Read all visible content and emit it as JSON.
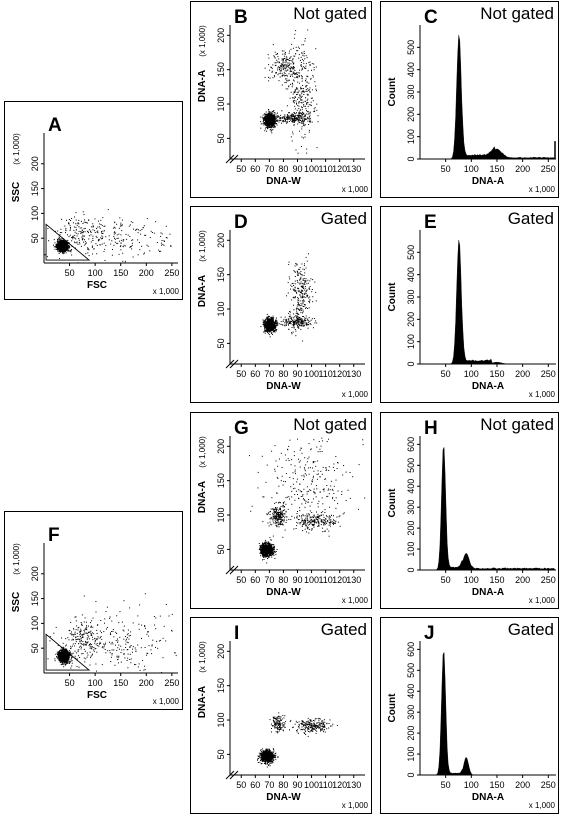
{
  "figure": {
    "labels": {
      "fsc": "FSC",
      "ssc": "SSC",
      "dna_a": "DNA-A",
      "dna_w": "DNA-W",
      "count": "Count",
      "multiplier_x": "x 1,000",
      "multiplier_y": "(x 1,000)"
    }
  },
  "chart_data": [
    {
      "panel": "A",
      "type": "scatter",
      "xlabel": "FSC",
      "ylabel": "SSC",
      "x_ticks": [
        50,
        100,
        150,
        200,
        250
      ],
      "y_ticks": [
        50,
        100,
        150,
        200
      ],
      "xlim": [
        0,
        262
      ],
      "ylim": [
        0,
        262
      ],
      "gate": "triangle",
      "populations": [
        {
          "cx": 35,
          "cy": 35,
          "sx": 5,
          "sy": 5,
          "n": 1400
        },
        {
          "cx": 75,
          "cy": 60,
          "sx": 25,
          "sy": 18,
          "n": 150
        },
        {
          "cx": 150,
          "cy": 50,
          "sx": 60,
          "sy": 25,
          "n": 200
        }
      ]
    },
    {
      "panel": "B",
      "type": "scatter",
      "status": "Not gated",
      "xlabel": "DNA-W",
      "ylabel": "DNA-A",
      "x_ticks": [
        50,
        60,
        70,
        80,
        90,
        100,
        110,
        120,
        130
      ],
      "y_ticks": [
        50,
        100,
        150,
        200
      ],
      "xlim": [
        42,
        138
      ],
      "ylim": [
        20,
        215
      ],
      "populations": [
        {
          "cx": 70,
          "cy": 77,
          "sx": 2,
          "sy": 5,
          "n": 900
        },
        {
          "cx": 88,
          "cy": 80,
          "sx": 7,
          "sy": 4,
          "n": 220
        },
        {
          "cx": 80,
          "cy": 155,
          "sx": 5,
          "sy": 12,
          "n": 180
        },
        {
          "cx": 92,
          "cy": 120,
          "sx": 5,
          "sy": 35,
          "n": 300
        }
      ]
    },
    {
      "panel": "C",
      "type": "histogram",
      "status": "Not gated",
      "xlabel": "DNA-A",
      "ylabel": "Count",
      "x_ticks": [
        50,
        100,
        150,
        200,
        250
      ],
      "y_ticks": [
        0,
        100,
        200,
        300,
        400,
        500
      ],
      "xlim": [
        0,
        265
      ],
      "ylim": [
        0,
        600
      ],
      "peaks": [
        {
          "mu": 76,
          "sigma": 4.5,
          "height": 560
        },
        {
          "mu": 150,
          "sigma": 9,
          "height": 45
        }
      ],
      "plateau": {
        "from": 82,
        "to": 145,
        "height": 20
      },
      "tail": {
        "from": 160,
        "to": 262,
        "height": 8
      },
      "endspike": 80
    },
    {
      "panel": "D",
      "type": "scatter",
      "status": "Gated",
      "xlabel": "DNA-W",
      "ylabel": "DNA-A",
      "x_ticks": [
        50,
        60,
        70,
        80,
        90,
        100,
        110,
        120,
        130
      ],
      "y_ticks": [
        50,
        100,
        150,
        200
      ],
      "xlim": [
        42,
        138
      ],
      "ylim": [
        20,
        215
      ],
      "populations": [
        {
          "cx": 70,
          "cy": 77,
          "sx": 2,
          "sy": 5,
          "n": 850
        },
        {
          "cx": 88,
          "cy": 82,
          "sx": 6,
          "sy": 4,
          "n": 200
        },
        {
          "cx": 92,
          "cy": 120,
          "sx": 4,
          "sy": 25,
          "n": 260
        }
      ]
    },
    {
      "panel": "E",
      "type": "histogram",
      "status": "Gated",
      "xlabel": "DNA-A",
      "ylabel": "Count",
      "x_ticks": [
        50,
        100,
        150,
        200,
        250
      ],
      "y_ticks": [
        0,
        100,
        200,
        300,
        400,
        500
      ],
      "xlim": [
        0,
        265
      ],
      "ylim": [
        0,
        600
      ],
      "peaks": [
        {
          "mu": 76,
          "sigma": 4.5,
          "height": 560
        },
        {
          "mu": 150,
          "sigma": 9,
          "height": 8
        }
      ],
      "plateau": {
        "from": 82,
        "to": 140,
        "height": 18
      },
      "tail": {
        "from": 160,
        "to": 262,
        "height": 0
      },
      "endspike": 0
    },
    {
      "panel": "F",
      "type": "scatter",
      "xlabel": "FSC",
      "ylabel": "SSC",
      "x_ticks": [
        50,
        100,
        150,
        200,
        250
      ],
      "y_ticks": [
        50,
        100,
        150,
        200
      ],
      "xlim": [
        0,
        262
      ],
      "ylim": [
        0,
        262
      ],
      "gate": "triangle",
      "populations": [
        {
          "cx": 38,
          "cy": 35,
          "sx": 5,
          "sy": 6,
          "n": 1300
        },
        {
          "cx": 80,
          "cy": 70,
          "sx": 22,
          "sy": 20,
          "n": 200
        },
        {
          "cx": 155,
          "cy": 60,
          "sx": 55,
          "sy": 35,
          "n": 220
        }
      ]
    },
    {
      "panel": "G",
      "type": "scatter",
      "status": "Not gated",
      "xlabel": "DNA-W",
      "ylabel": "DNA-A",
      "x_ticks": [
        50,
        60,
        70,
        80,
        90,
        100,
        110,
        120,
        130
      ],
      "y_ticks": [
        50,
        100,
        150,
        200
      ],
      "xlim": [
        42,
        138
      ],
      "ylim": [
        20,
        215
      ],
      "populations": [
        {
          "cx": 68,
          "cy": 50,
          "sx": 2.2,
          "sy": 4.5,
          "n": 900
        },
        {
          "cx": 76,
          "cy": 100,
          "sx": 3,
          "sy": 8,
          "n": 220
        },
        {
          "cx": 102,
          "cy": 92,
          "sx": 7,
          "sy": 6,
          "n": 220
        },
        {
          "cx": 98,
          "cy": 150,
          "sx": 16,
          "sy": 35,
          "n": 280
        }
      ]
    },
    {
      "panel": "H",
      "type": "histogram",
      "status": "Not gated",
      "xlabel": "DNA-A",
      "ylabel": "Count",
      "x_ticks": [
        50,
        100,
        150,
        200,
        250
      ],
      "y_ticks": [
        0,
        100,
        200,
        300,
        400,
        500,
        600
      ],
      "xlim": [
        0,
        265
      ],
      "ylim": [
        0,
        640
      ],
      "peaks": [
        {
          "mu": 46,
          "sigma": 4,
          "height": 600
        },
        {
          "mu": 90,
          "sigma": 6,
          "height": 80
        }
      ],
      "plateau": {
        "from": 55,
        "to": 82,
        "height": 15
      },
      "tail": {
        "from": 100,
        "to": 262,
        "height": 10
      },
      "endspike": 0
    },
    {
      "panel": "I",
      "type": "scatter",
      "status": "Gated",
      "xlabel": "DNA-W",
      "ylabel": "DNA-A",
      "x_ticks": [
        50,
        60,
        70,
        80,
        90,
        100,
        110,
        120,
        130
      ],
      "y_ticks": [
        50,
        100,
        150,
        200
      ],
      "xlim": [
        42,
        138
      ],
      "ylim": [
        20,
        215
      ],
      "populations": [
        {
          "cx": 68,
          "cy": 48,
          "sx": 2.2,
          "sy": 4.5,
          "n": 850
        },
        {
          "cx": 76,
          "cy": 95,
          "sx": 2.5,
          "sy": 6,
          "n": 120
        },
        {
          "cx": 100,
          "cy": 92,
          "sx": 6,
          "sy": 5,
          "n": 220
        }
      ]
    },
    {
      "panel": "J",
      "type": "histogram",
      "status": "Gated",
      "xlabel": "DNA-A",
      "ylabel": "Count",
      "x_ticks": [
        50,
        100,
        150,
        200,
        250
      ],
      "y_ticks": [
        0,
        100,
        200,
        300,
        400,
        500,
        600
      ],
      "xlim": [
        0,
        265
      ],
      "ylim": [
        0,
        640
      ],
      "peaks": [
        {
          "mu": 46,
          "sigma": 4,
          "height": 600
        },
        {
          "mu": 90,
          "sigma": 4.5,
          "height": 85
        }
      ],
      "plateau": {
        "from": 55,
        "to": 82,
        "height": 10
      },
      "tail": {
        "from": 100,
        "to": 262,
        "height": 0
      },
      "endspike": 0
    }
  ]
}
